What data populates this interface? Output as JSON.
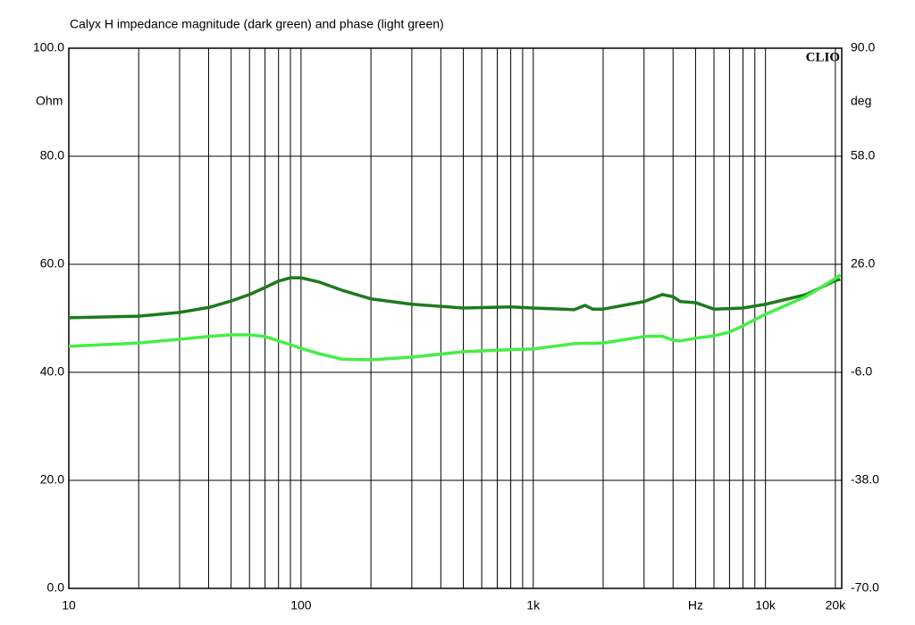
{
  "chart_data": {
    "type": "line",
    "title": "Calyx H impedance magnitude (dark green) and phase (light green)",
    "logo": "CLIO",
    "ylabel": "Ohm",
    "y2label": "deg",
    "xscale": "log",
    "grid": true,
    "xlim": [
      10,
      21300
    ],
    "xticks": [
      10,
      100,
      {
        "value": 1000,
        "label": "1k"
      },
      {
        "value": 5000,
        "label": "Hz"
      },
      {
        "value": 10000,
        "label": "10k"
      },
      {
        "value": 20000,
        "label": "20k"
      }
    ],
    "xgrid": [
      20,
      30,
      40,
      50,
      60,
      70,
      80,
      90,
      100,
      200,
      300,
      400,
      500,
      600,
      700,
      800,
      900,
      1000,
      2000,
      3000,
      4000,
      5000,
      6000,
      7000,
      8000,
      9000,
      10000,
      20000
    ],
    "ylim": [
      0,
      100
    ],
    "yticks": [
      {
        "value": 0,
        "label": "0.0"
      },
      {
        "value": 20,
        "label": "20.0"
      },
      {
        "value": 40,
        "label": "40.0"
      },
      {
        "value": 60,
        "label": "60.0"
      },
      {
        "value": 80,
        "label": "80.0"
      },
      {
        "value": 100,
        "label": "100.0"
      }
    ],
    "y2lim": [
      -70,
      90
    ],
    "y2ticks": [
      {
        "value": -70,
        "label": "-70.0"
      },
      {
        "value": -38,
        "label": "-38.0"
      },
      {
        "value": -6,
        "label": "-6.0"
      },
      {
        "value": 26,
        "label": "26.0"
      },
      {
        "value": 58,
        "label": "58.0"
      },
      {
        "value": 90,
        "label": "90.0"
      }
    ],
    "x": [
      10,
      20,
      30,
      40,
      50,
      60,
      70,
      80,
      90,
      100,
      120,
      150,
      200,
      300,
      500,
      800,
      1000,
      1500,
      1670,
      1800,
      2000,
      3000,
      3600,
      4000,
      4300,
      5000,
      6000,
      7000,
      8000,
      10000,
      15000,
      20000,
      21000
    ],
    "series": [
      {
        "name": "magnitude",
        "color": "#1e7a1e",
        "values": [
          50.1,
          50.4,
          51.1,
          52,
          53.2,
          54.4,
          55.7,
          56.9,
          57.5,
          57.5,
          56.7,
          55.2,
          53.6,
          52.6,
          51.9,
          52.1,
          51.9,
          51.6,
          52.4,
          51.7,
          51.7,
          53.1,
          54.4,
          54,
          53.1,
          52.9,
          51.7,
          51.8,
          51.9,
          52.6,
          54.4,
          57,
          57.2
        ]
      },
      {
        "name": "phase",
        "color": "#46ee46",
        "axis": "y2",
        "values": [
          1.7,
          2.7,
          3.8,
          4.6,
          5.1,
          5.1,
          4.6,
          3.3,
          2.2,
          1.1,
          -0.5,
          -2.1,
          -2.3,
          -1.5,
          0.1,
          0.7,
          0.9,
          2.5,
          2.6,
          2.6,
          2.7,
          4.6,
          4.7,
          3.5,
          3.3,
          4.1,
          4.8,
          5.9,
          7.8,
          11.2,
          16.5,
          21.8,
          22.9
        ]
      }
    ]
  }
}
